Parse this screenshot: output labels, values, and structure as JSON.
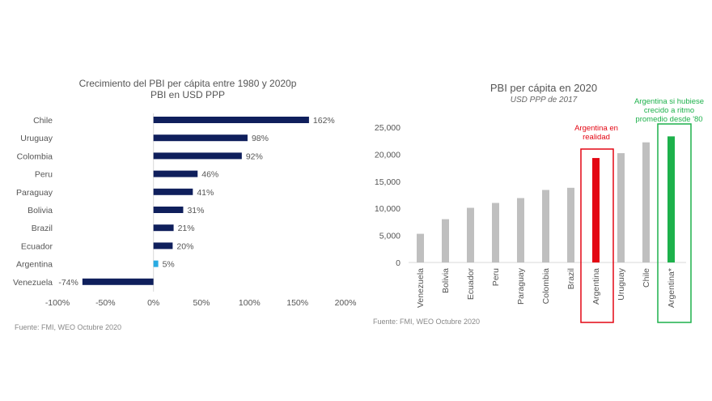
{
  "chart_data": [
    {
      "type": "bar",
      "orientation": "horizontal",
      "title": "Crecimiento del PBI per cápita entre 1980 y 2020p",
      "subtitle": "PBI en USD PPP",
      "categories": [
        "Chile",
        "Uruguay",
        "Colombia",
        "Peru",
        "Paraguay",
        "Bolivia",
        "Brazil",
        "Ecuador",
        "Argentina",
        "Venezuela"
      ],
      "values": [
        162,
        98,
        92,
        46,
        41,
        31,
        21,
        20,
        5,
        -74
      ],
      "value_labels": [
        "162%",
        "98%",
        "92%",
        "46%",
        "41%",
        "31%",
        "21%",
        "20%",
        "5%",
        "-74%"
      ],
      "highlight_category": "Argentina",
      "xlim": [
        -100,
        200
      ],
      "xticks": [
        -100,
        -50,
        0,
        50,
        100,
        150,
        200
      ],
      "xtick_labels": [
        "-100%",
        "-50%",
        "0%",
        "50%",
        "100%",
        "150%",
        "200%"
      ],
      "colors": {
        "default": "#0f1f5c",
        "highlight": "#29abe2"
      },
      "source": "Fuente: FMI, WEO Octubre 2020"
    },
    {
      "type": "bar",
      "title": "PBI per cápita en 2020",
      "subtitle": "USD PPP de 2017",
      "categories": [
        "Venezuela",
        "Bolivia",
        "Ecuador",
        "Peru",
        "Paraguay",
        "Colombia",
        "Brazil",
        "Argentina",
        "Uruguay",
        "Chile",
        "Argentina*"
      ],
      "values": [
        5300,
        8000,
        10100,
        11000,
        11900,
        13400,
        13800,
        19300,
        20200,
        22200,
        23300
      ],
      "ylim": [
        0,
        25000
      ],
      "yticks": [
        0,
        5000,
        10000,
        15000,
        20000,
        25000
      ],
      "ytick_labels": [
        "0",
        "5,000",
        "10,000",
        "15,000",
        "20,000",
        "25,000"
      ],
      "colors": {
        "default": "#bfbfbf",
        "actual": "#e30613",
        "hypothetical": "#1db14b"
      },
      "annotations": {
        "actual": "Argentina en realidad",
        "hypothetical": "Argentina si hubiese crecido a ritmo promedio desde '80"
      },
      "source": "Fuente: FMI, WEO Octubre 2020"
    }
  ]
}
